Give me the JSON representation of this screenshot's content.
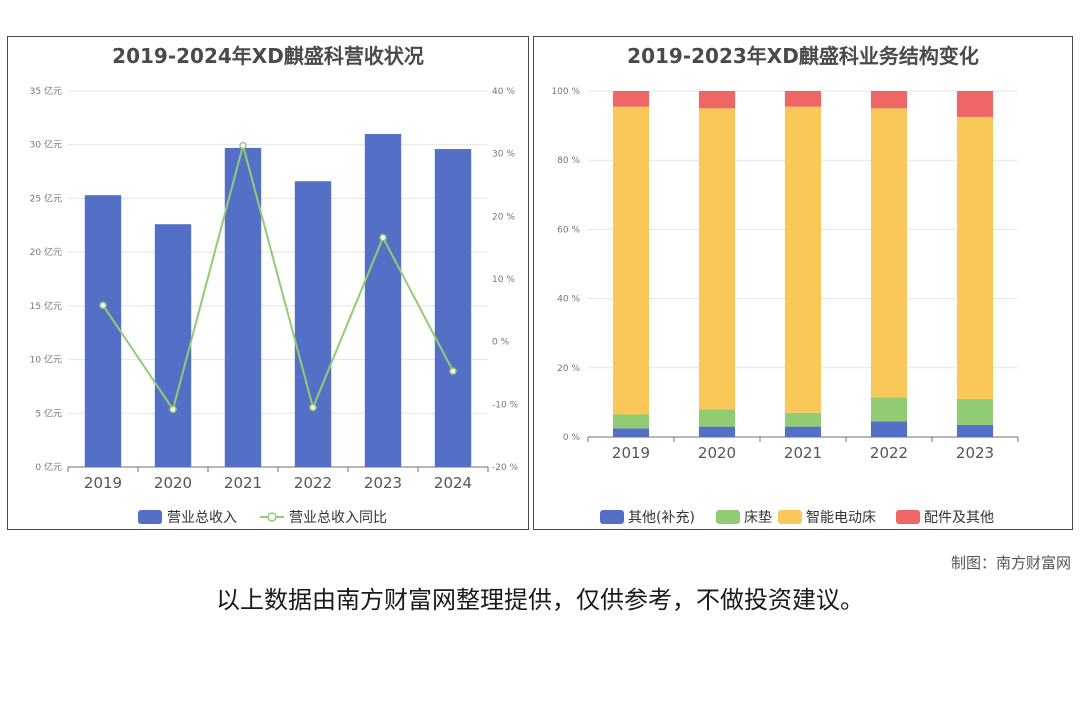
{
  "colors": {
    "revenue_bar": "#5470c6",
    "yoy_line": "#91cc75",
    "other_supp": "#5470c6",
    "mattress": "#91cc75",
    "smart_bed": "#fac858",
    "parts": "#ee6666"
  },
  "credit": "制图：南方财富网",
  "disclaimer": "以上数据由南方财富网整理提供，仅供参考，不做投资建议。",
  "chart_data": [
    {
      "type": "bar",
      "title": "2019-2024年XD麒盛科营收状况",
      "categories": [
        "2019",
        "2020",
        "2021",
        "2022",
        "2023",
        "2024"
      ],
      "series": [
        {
          "name": "营业总收入",
          "type": "bar",
          "axis": "left",
          "values": [
            25.3,
            22.6,
            29.7,
            26.6,
            31.0,
            29.6
          ]
        },
        {
          "name": "营业总收入同比",
          "type": "line",
          "axis": "right",
          "values": [
            5.8,
            -10.8,
            31.3,
            -10.5,
            16.6,
            -4.7
          ]
        }
      ],
      "y_left": {
        "min": 0,
        "max": 35,
        "step": 5,
        "unit": "亿元",
        "ticks": [
          "0 亿元",
          "5 亿元",
          "10 亿元",
          "15 亿元",
          "20 亿元",
          "25 亿元",
          "30 亿元",
          "35 亿元"
        ]
      },
      "y_right": {
        "min": -20,
        "max": 40,
        "step": 10,
        "unit": "%",
        "ticks": [
          "-20 %",
          "-10 %",
          "0 %",
          "10 %",
          "20 %",
          "30 %",
          "40 %"
        ]
      },
      "grid": true,
      "legend": "bottom"
    },
    {
      "type": "bar",
      "stacked": true,
      "title": "2019-2023年XD麒盛科业务结构变化",
      "categories": [
        "2019",
        "2020",
        "2021",
        "2022",
        "2023"
      ],
      "series": [
        {
          "name": "其他(补充)",
          "values": [
            2.5,
            3.0,
            3.0,
            4.5,
            3.5
          ]
        },
        {
          "name": "床垫",
          "values": [
            4.0,
            5.0,
            4.0,
            7.0,
            7.5
          ]
        },
        {
          "name": "智能电动床",
          "values": [
            89.0,
            87.0,
            88.5,
            83.5,
            81.5
          ]
        },
        {
          "name": "配件及其他",
          "values": [
            4.5,
            5.0,
            4.5,
            5.0,
            7.5
          ]
        }
      ],
      "y": {
        "min": 0,
        "max": 100,
        "step": 20,
        "unit": "%",
        "ticks": [
          "0 %",
          "20 %",
          "40 %",
          "60 %",
          "80 %",
          "100 %"
        ]
      },
      "grid": true,
      "legend": "bottom"
    }
  ]
}
